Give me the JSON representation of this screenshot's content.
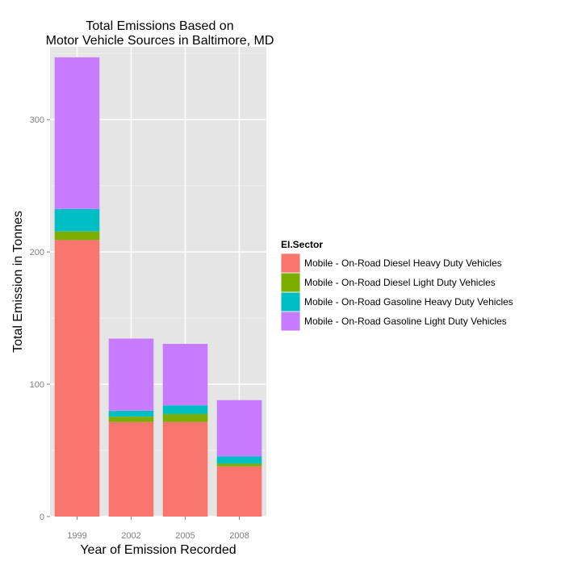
{
  "chart_data": {
    "type": "bar",
    "stacked": true,
    "title": "Total Emissions Based on\nMotor Vehicle Sources in Baltimore, MD",
    "xlabel": "Year of Emission Recorded",
    "ylabel": "Total Emission in Tonnes",
    "categories": [
      "1999",
      "2002",
      "2005",
      "2008"
    ],
    "ylim": [
      0,
      355
    ],
    "yticks": [
      0,
      100,
      200,
      300
    ],
    "grid": true,
    "legend": {
      "title": "EI.Sector",
      "placement": "right"
    },
    "series": [
      {
        "name": "Mobile - On-Road Diesel Heavy Duty Vehicles",
        "color": "#F8766D",
        "values": [
          209.0,
          71.5,
          71.5,
          38.0
        ]
      },
      {
        "name": "Mobile - On-Road Diesel Light Duty Vehicles",
        "color": "#7CAE00",
        "values": [
          6.5,
          4.0,
          6.0,
          2.0
        ]
      },
      {
        "name": "Mobile - On-Road Gasoline Heavy Duty Vehicles",
        "color": "#00BFC4",
        "values": [
          17.0,
          4.5,
          6.5,
          5.5
        ]
      },
      {
        "name": "Mobile - On-Road Gasoline Light Duty Vehicles",
        "color": "#C77CFF",
        "values": [
          114.5,
          54.5,
          46.5,
          42.5
        ]
      }
    ]
  }
}
